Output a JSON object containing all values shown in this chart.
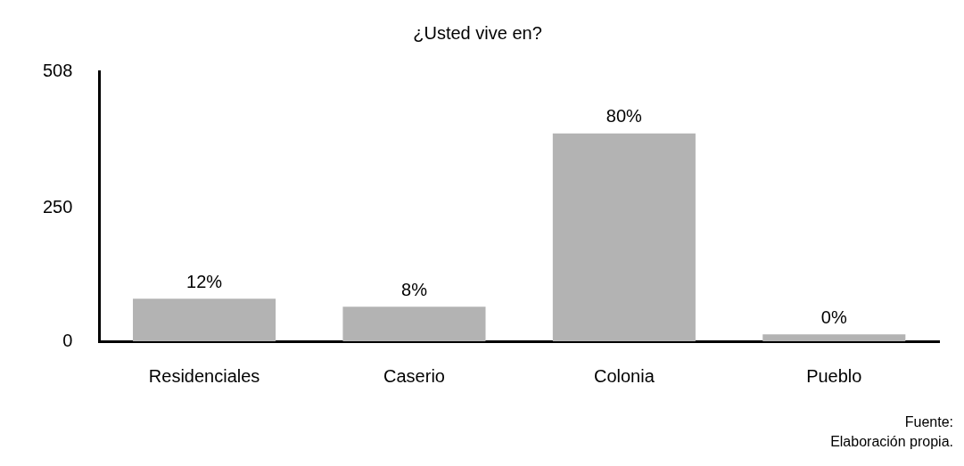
{
  "chart_data": {
    "type": "bar",
    "title": "¿Usted vive en?",
    "categories": [
      "Residenciales",
      "Caserio",
      "Colonia",
      "Pueblo"
    ],
    "values": [
      80,
      65,
      391,
      13
    ],
    "color": "#b3b3b3",
    "ylim": [
      0,
      508
    ],
    "yticks": [
      0,
      250,
      508
    ],
    "grid": false,
    "legend": false,
    "annotations": [
      {
        "text": "12%",
        "x": "Residenciales",
        "y": 80
      },
      {
        "text": "8%",
        "x": "Caserio",
        "y": 65
      },
      {
        "text": "80%",
        "x": "Colonia",
        "y": 391
      },
      {
        "text": "0%",
        "x": "Pueblo",
        "y": 13
      },
      "Fuente: Elaboración propia."
    ]
  }
}
